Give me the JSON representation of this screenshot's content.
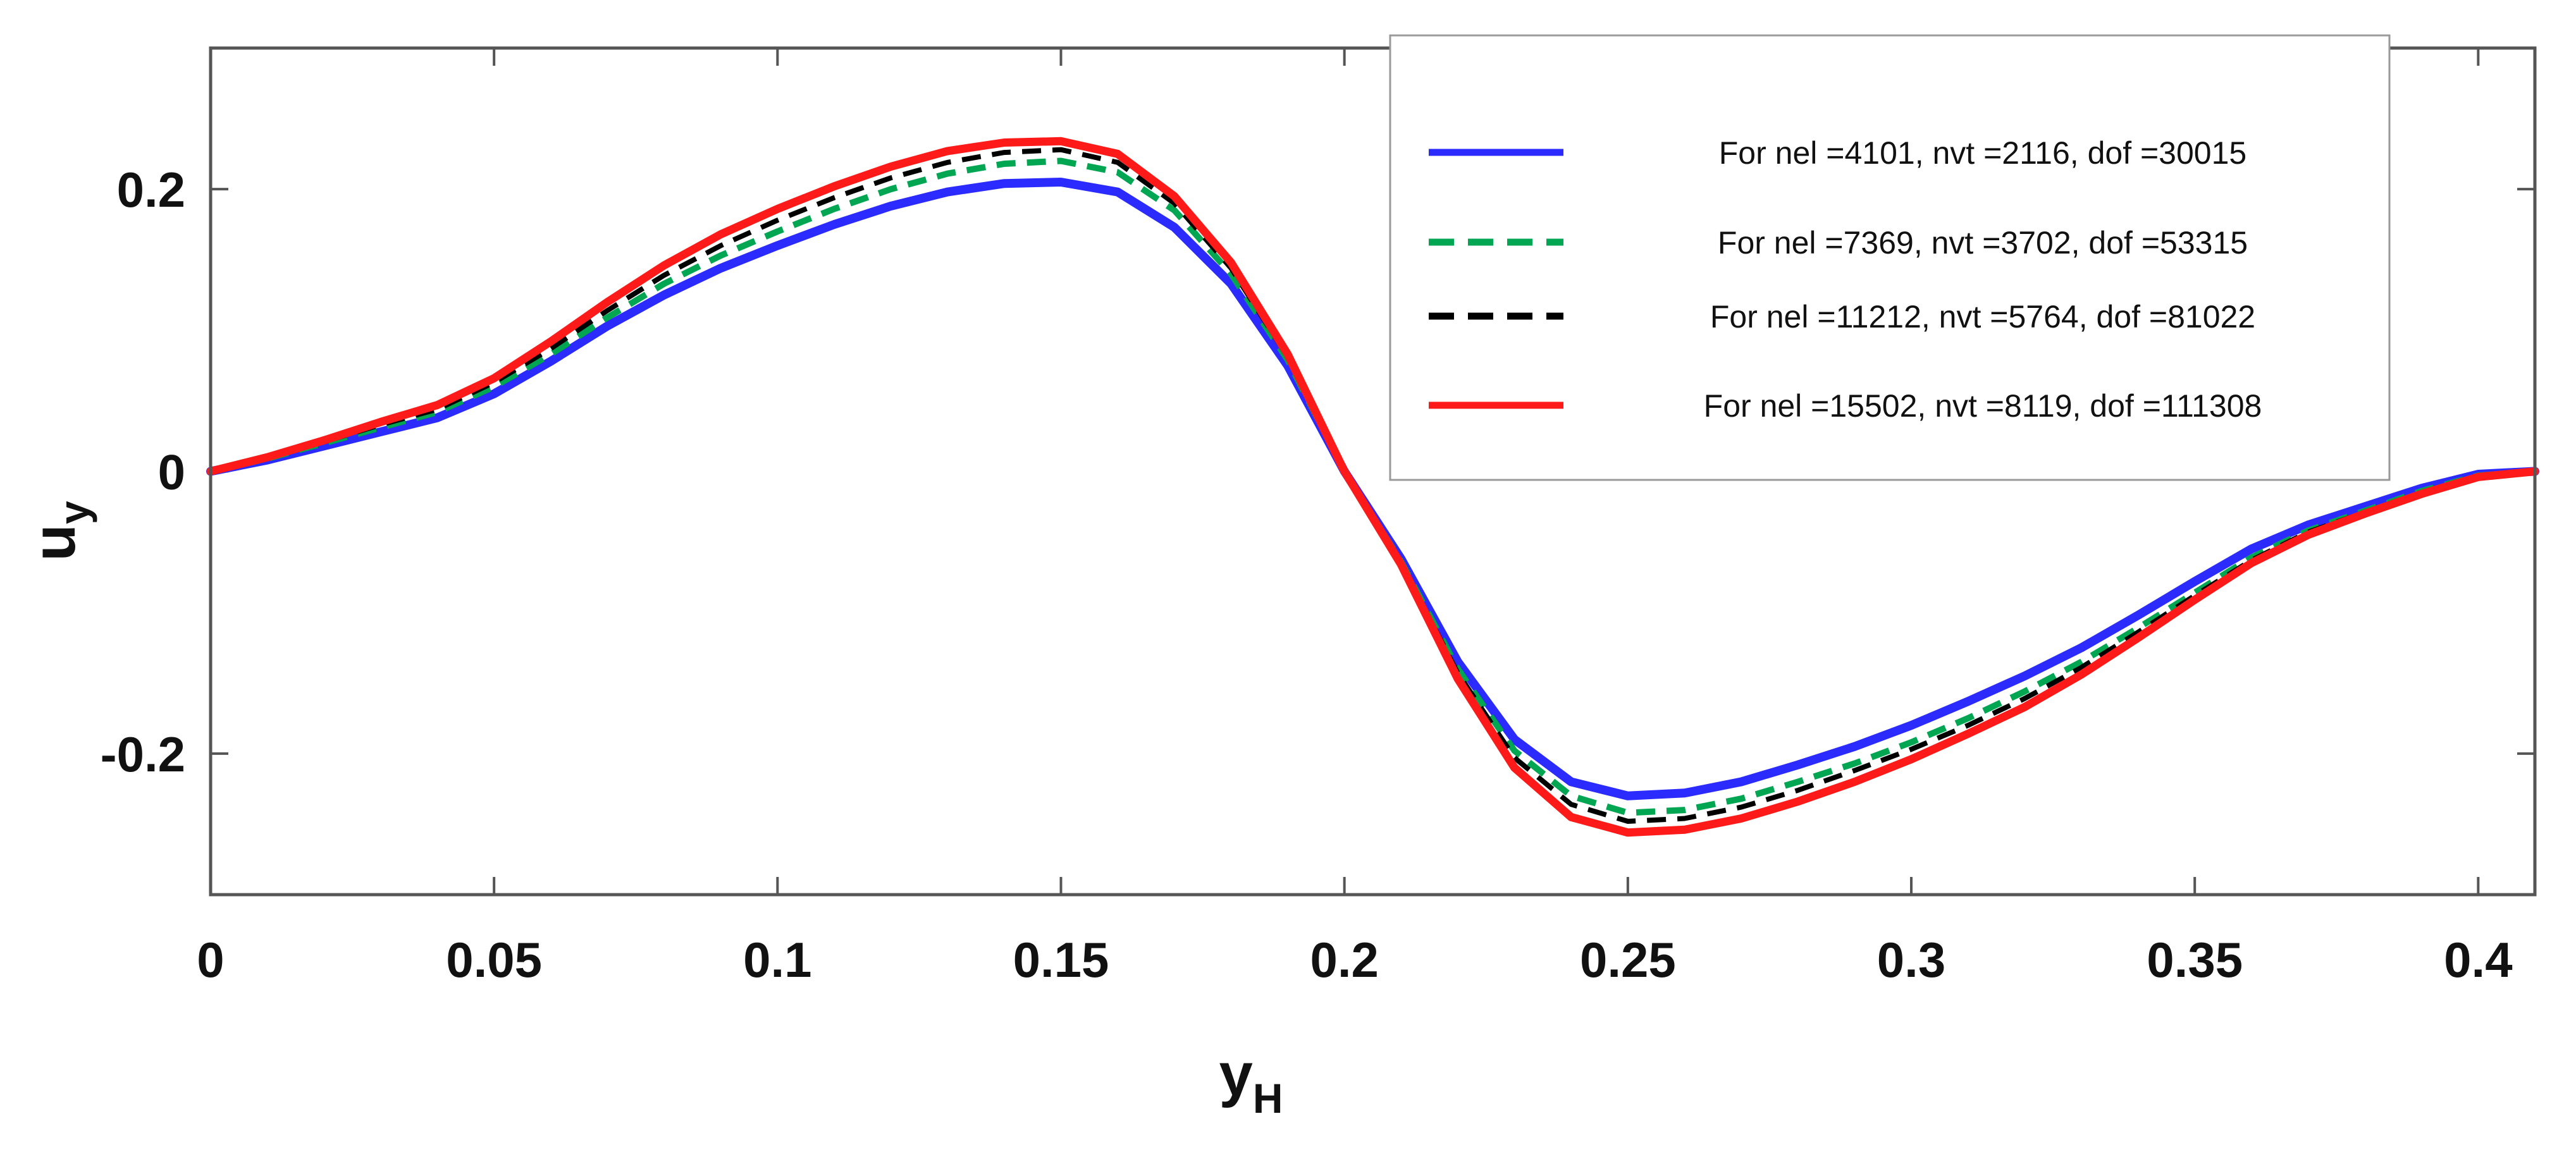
{
  "chart_data": {
    "type": "line",
    "title": "",
    "xlabel": {
      "main": "y",
      "sub": "H"
    },
    "ylabel": {
      "main": "u",
      "sub": "y"
    },
    "xlim": [
      0,
      0.41
    ],
    "ylim": [
      -0.3,
      0.3
    ],
    "xticks": [
      0,
      0.05,
      0.1,
      0.15,
      0.2,
      0.25,
      0.3,
      0.35,
      0.4
    ],
    "xtick_labels": [
      "0",
      "0.05",
      "0.1",
      "0.15",
      "0.2",
      "0.25",
      "0.3",
      "0.35",
      "0.4"
    ],
    "yticks": [
      0.2,
      0,
      -0.2
    ],
    "ytick_labels": [
      "0.2",
      "0",
      "-0.2"
    ],
    "grid": false,
    "legend_position": "top-right",
    "x": [
      0,
      0.01,
      0.02,
      0.03,
      0.04,
      0.05,
      0.06,
      0.07,
      0.08,
      0.09,
      0.1,
      0.11,
      0.12,
      0.13,
      0.14,
      0.15,
      0.16,
      0.17,
      0.18,
      0.19,
      0.2,
      0.21,
      0.22,
      0.23,
      0.24,
      0.25,
      0.26,
      0.27,
      0.28,
      0.29,
      0.3,
      0.31,
      0.32,
      0.33,
      0.34,
      0.35,
      0.36,
      0.37,
      0.38,
      0.39,
      0.4,
      0.41
    ],
    "series": [
      {
        "name": "For nel =4101, nvt =2116, dof =30015",
        "color": "#2b2bff",
        "dash": "solid",
        "values": [
          0,
          0.008,
          0.018,
          0.028,
          0.038,
          0.055,
          0.078,
          0.103,
          0.125,
          0.144,
          0.16,
          0.175,
          0.188,
          0.198,
          0.204,
          0.205,
          0.198,
          0.173,
          0.133,
          0.075,
          0.0,
          -0.062,
          -0.135,
          -0.19,
          -0.22,
          -0.23,
          -0.228,
          -0.22,
          -0.208,
          -0.195,
          -0.18,
          -0.163,
          -0.145,
          -0.125,
          -0.102,
          -0.078,
          -0.055,
          -0.038,
          -0.025,
          -0.012,
          -0.002,
          0.0
        ]
      },
      {
        "name": "For nel =7369, nvt =3702, dof =53315",
        "color": "#00a651",
        "dash": "dashed",
        "values": [
          0,
          0.009,
          0.02,
          0.031,
          0.042,
          0.06,
          0.083,
          0.109,
          0.133,
          0.153,
          0.17,
          0.186,
          0.2,
          0.211,
          0.218,
          0.22,
          0.212,
          0.185,
          0.14,
          0.079,
          0.0,
          -0.064,
          -0.14,
          -0.198,
          -0.23,
          -0.242,
          -0.24,
          -0.232,
          -0.22,
          -0.207,
          -0.192,
          -0.175,
          -0.156,
          -0.135,
          -0.111,
          -0.086,
          -0.061,
          -0.042,
          -0.028,
          -0.014,
          -0.003,
          0.0
        ]
      },
      {
        "name": "For nel =11212, nvt =5764, dof =81022",
        "color": "#000000",
        "dash": "dashed",
        "values": [
          0,
          0.009,
          0.021,
          0.033,
          0.044,
          0.063,
          0.087,
          0.114,
          0.139,
          0.16,
          0.178,
          0.194,
          0.208,
          0.219,
          0.226,
          0.228,
          0.219,
          0.19,
          0.144,
          0.081,
          0.0,
          -0.065,
          -0.143,
          -0.203,
          -0.236,
          -0.248,
          -0.246,
          -0.238,
          -0.226,
          -0.212,
          -0.197,
          -0.18,
          -0.161,
          -0.139,
          -0.114,
          -0.088,
          -0.063,
          -0.043,
          -0.029,
          -0.015,
          -0.003,
          0.0
        ]
      },
      {
        "name": "For nel =15502, nvt =8119, dof =111308",
        "color": "#ff1a1a",
        "dash": "solid",
        "values": [
          0,
          0.01,
          0.022,
          0.035,
          0.047,
          0.066,
          0.092,
          0.12,
          0.146,
          0.168,
          0.186,
          0.202,
          0.216,
          0.227,
          0.233,
          0.234,
          0.225,
          0.195,
          0.148,
          0.083,
          0.0,
          -0.066,
          -0.147,
          -0.21,
          -0.245,
          -0.256,
          -0.254,
          -0.246,
          -0.234,
          -0.22,
          -0.204,
          -0.186,
          -0.167,
          -0.144,
          -0.118,
          -0.091,
          -0.065,
          -0.045,
          -0.03,
          -0.016,
          -0.004,
          0.0
        ]
      }
    ]
  }
}
